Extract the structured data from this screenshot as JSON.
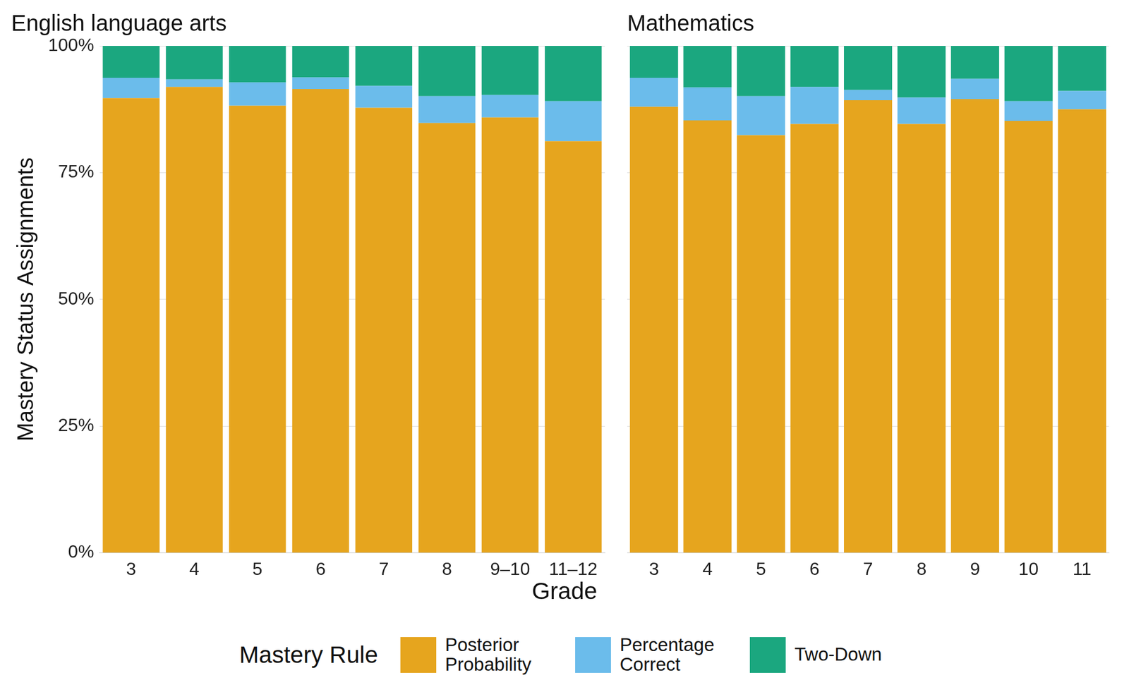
{
  "chart_data": [
    {
      "type": "bar",
      "title": "English language arts",
      "stacked": true,
      "grid": true,
      "y_label": "Mastery Status Assignments",
      "x_label": "Grade",
      "legend_title": "Mastery Rule",
      "legend": "bottom",
      "categories": [
        "3",
        "4",
        "5",
        "6",
        "7",
        "8",
        "9–10",
        "11–12"
      ],
      "ylim": [
        0,
        100
      ],
      "yticks": [
        {
          "value": 0,
          "label": "0%"
        },
        {
          "value": 25,
          "label": "25%"
        },
        {
          "value": 50,
          "label": "50%"
        },
        {
          "value": 75,
          "label": "75%"
        },
        {
          "value": 100,
          "label": "100%"
        }
      ],
      "series": [
        {
          "name": "Posterior Probability",
          "color": "#e6a51e",
          "values": [
            89.7,
            91.9,
            88.2,
            91.5,
            87.8,
            84.8,
            85.9,
            81.2
          ]
        },
        {
          "name": "Percentage Correct",
          "color": "#6bbceb",
          "values": [
            4.0,
            1.5,
            4.6,
            2.3,
            4.3,
            5.3,
            4.4,
            7.9
          ]
        },
        {
          "name": "Two-Down",
          "color": "#1ba77f",
          "values": [
            6.3,
            6.6,
            7.2,
            6.2,
            7.9,
            9.9,
            9.7,
            10.9
          ]
        }
      ]
    },
    {
      "type": "bar",
      "title": "Mathematics",
      "stacked": true,
      "grid": true,
      "tick_labels": "x",
      "categories": [
        "3",
        "4",
        "5",
        "6",
        "7",
        "8",
        "9",
        "10",
        "11"
      ],
      "ylim": [
        0,
        100
      ],
      "yticks": [
        {
          "value": 0,
          "label": "0%"
        },
        {
          "value": 25,
          "label": "25%"
        },
        {
          "value": 50,
          "label": "50%"
        },
        {
          "value": 75,
          "label": "75%"
        },
        {
          "value": 100,
          "label": "100%"
        }
      ],
      "series": [
        {
          "name": "Posterior Probability",
          "color": "#e6a51e",
          "values": [
            88.0,
            85.3,
            82.4,
            84.6,
            89.3,
            84.6,
            89.5,
            85.2,
            87.5
          ]
        },
        {
          "name": "Percentage Correct",
          "color": "#6bbceb",
          "values": [
            5.7,
            6.5,
            7.7,
            7.3,
            2.0,
            5.2,
            4.0,
            3.9,
            3.6
          ]
        },
        {
          "name": "Two-Down",
          "color": "#1ba77f",
          "values": [
            6.3,
            8.2,
            9.9,
            8.1,
            8.7,
            10.2,
            6.5,
            10.9,
            8.9
          ]
        }
      ]
    }
  ]
}
